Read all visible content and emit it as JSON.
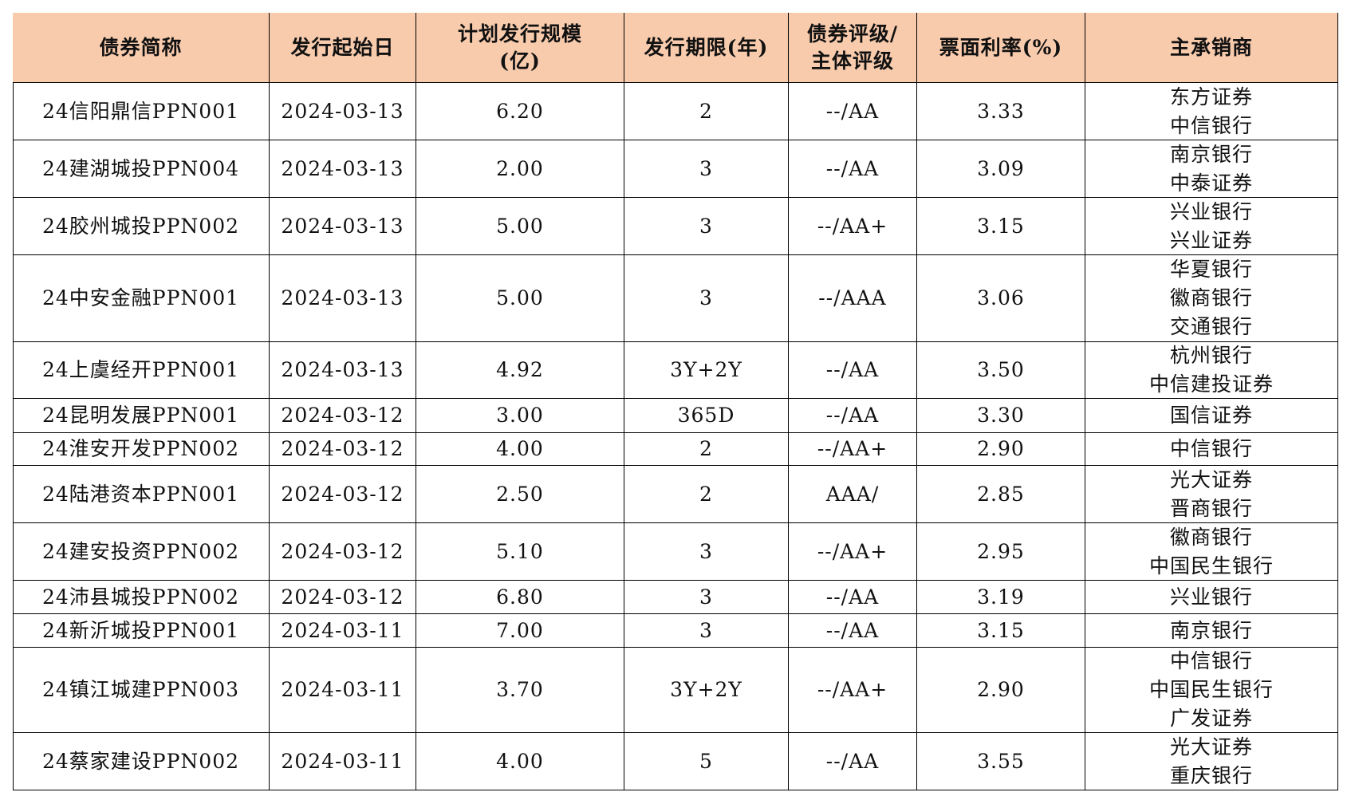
{
  "table": {
    "header": [
      [
        "债券简称"
      ],
      [
        "发行起始日"
      ],
      [
        "计划发行规模",
        "(亿)"
      ],
      [
        "发行期限(年)"
      ],
      [
        "债券评级/",
        "主体评级"
      ],
      [
        "票面利率(%)"
      ],
      [
        "主承销商"
      ]
    ],
    "rows": [
      [
        "24信阳鼎信PPN001",
        "2024-03-13",
        "6.20",
        "2",
        "--/AA",
        "3.33",
        [
          "东方证券",
          "中信银行"
        ]
      ],
      [
        "24建湖城投PPN004",
        "2024-03-13",
        "2.00",
        "3",
        "--/AA",
        "3.09",
        [
          "南京银行",
          "中泰证券"
        ]
      ],
      [
        "24胶州城投PPN002",
        "2024-03-13",
        "5.00",
        "3",
        "--/AA+",
        "3.15",
        [
          "兴业银行",
          "兴业证券"
        ]
      ],
      [
        "24中安金融PPN001",
        "2024-03-13",
        "5.00",
        "3",
        "--/AAA",
        "3.06",
        [
          "华夏银行",
          "徽商银行",
          "交通银行"
        ]
      ],
      [
        "24上虞经开PPN001",
        "2024-03-13",
        "4.92",
        "3Y+2Y",
        "--/AA",
        "3.50",
        [
          "杭州银行",
          "中信建投证券"
        ]
      ],
      [
        "24昆明发展PPN001",
        "2024-03-12",
        "3.00",
        "365D",
        "--/AA",
        "3.30",
        [
          "国信证券"
        ]
      ],
      [
        "24淮安开发PPN002",
        "2024-03-12",
        "4.00",
        "2",
        "--/AA+",
        "2.90",
        [
          "中信银行"
        ]
      ],
      [
        "24陆港资本PPN001",
        "2024-03-12",
        "2.50",
        "2",
        "AAA/",
        "2.85",
        [
          "光大证券",
          "晋商银行"
        ]
      ],
      [
        "24建安投资PPN002",
        "2024-03-12",
        "5.10",
        "3",
        "--/AA+",
        "2.95",
        [
          "徽商银行",
          "中国民生银行"
        ]
      ],
      [
        "24沛县城投PPN002",
        "2024-03-12",
        "6.80",
        "3",
        "--/AA",
        "3.19",
        [
          "兴业银行"
        ]
      ],
      [
        "24新沂城投PPN001",
        "2024-03-11",
        "7.00",
        "3",
        "--/AA",
        "3.15",
        [
          "南京银行"
        ]
      ],
      [
        "24镇江城建PPN003",
        "2024-03-11",
        "3.70",
        "3Y+2Y",
        "--/AA+",
        "2.90",
        [
          "中信银行",
          "中国民生银行",
          "广发证券"
        ]
      ],
      [
        "24蔡家建设PPN002",
        "2024-03-11",
        "4.00",
        "5",
        "--/AA",
        "3.55",
        [
          "光大证券",
          "重庆银行"
        ]
      ]
    ]
  }
}
